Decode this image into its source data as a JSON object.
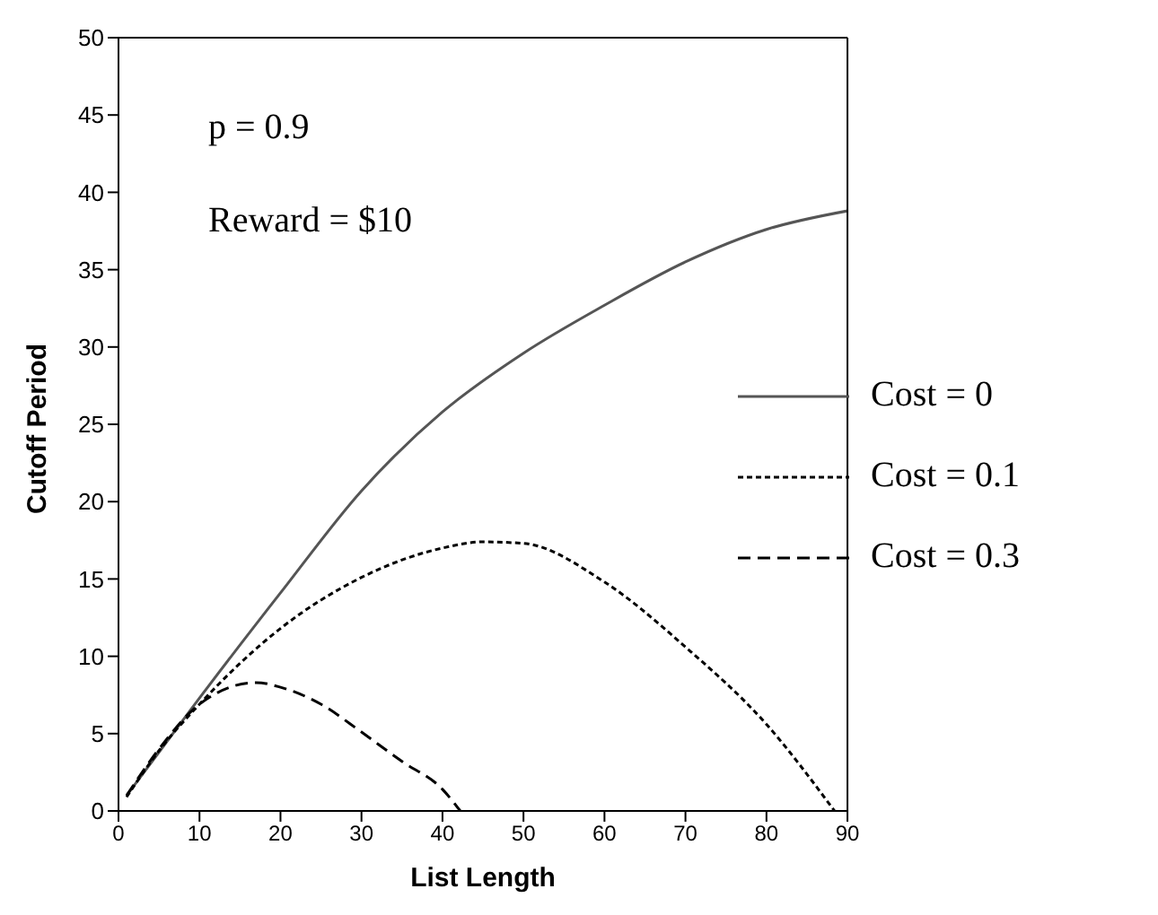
{
  "chart_data": {
    "type": "line",
    "xlabel": "List Length",
    "ylabel": "Cutoff Period",
    "annotations": [
      "p = 0.9",
      "Reward = $10"
    ],
    "xlim": [
      0,
      90
    ],
    "xticks": [
      0,
      10,
      20,
      30,
      40,
      50,
      60,
      70,
      80,
      90
    ],
    "ylim": [
      0,
      50
    ],
    "yticks": [
      0,
      5,
      10,
      15,
      20,
      25,
      30,
      35,
      40,
      45,
      50
    ],
    "grid": false,
    "legend": "right",
    "marker": "none",
    "series": [
      {
        "name": "Cost = 0",
        "color": "#555555",
        "line_style": "solid",
        "x": [
          1,
          5,
          10,
          20,
          30,
          40,
          50,
          60,
          70,
          80,
          90
        ],
        "values": [
          1.0,
          3.8,
          7.3,
          14.1,
          20.7,
          25.8,
          29.6,
          32.7,
          35.5,
          37.6,
          38.8
        ]
      },
      {
        "name": "Cost = 0.1",
        "color": "#000000",
        "line_style": "dotted",
        "x": [
          1,
          5,
          10,
          20,
          30,
          40,
          45,
          50,
          60,
          70,
          80,
          88.4
        ],
        "values": [
          0.9,
          3.9,
          6.9,
          11.8,
          15.1,
          17.0,
          17.4,
          17.3,
          14.8,
          10.6,
          5.6,
          0
        ]
      },
      {
        "name": "Cost = 0.3",
        "color": "#000000",
        "line_style": "dashed",
        "x": [
          1,
          5,
          10,
          17,
          20,
          25,
          30,
          35,
          40,
          42.2
        ],
        "values": [
          1.0,
          4.0,
          6.9,
          8.3,
          8.0,
          6.9,
          5.1,
          3.2,
          1.4,
          0
        ]
      }
    ]
  }
}
